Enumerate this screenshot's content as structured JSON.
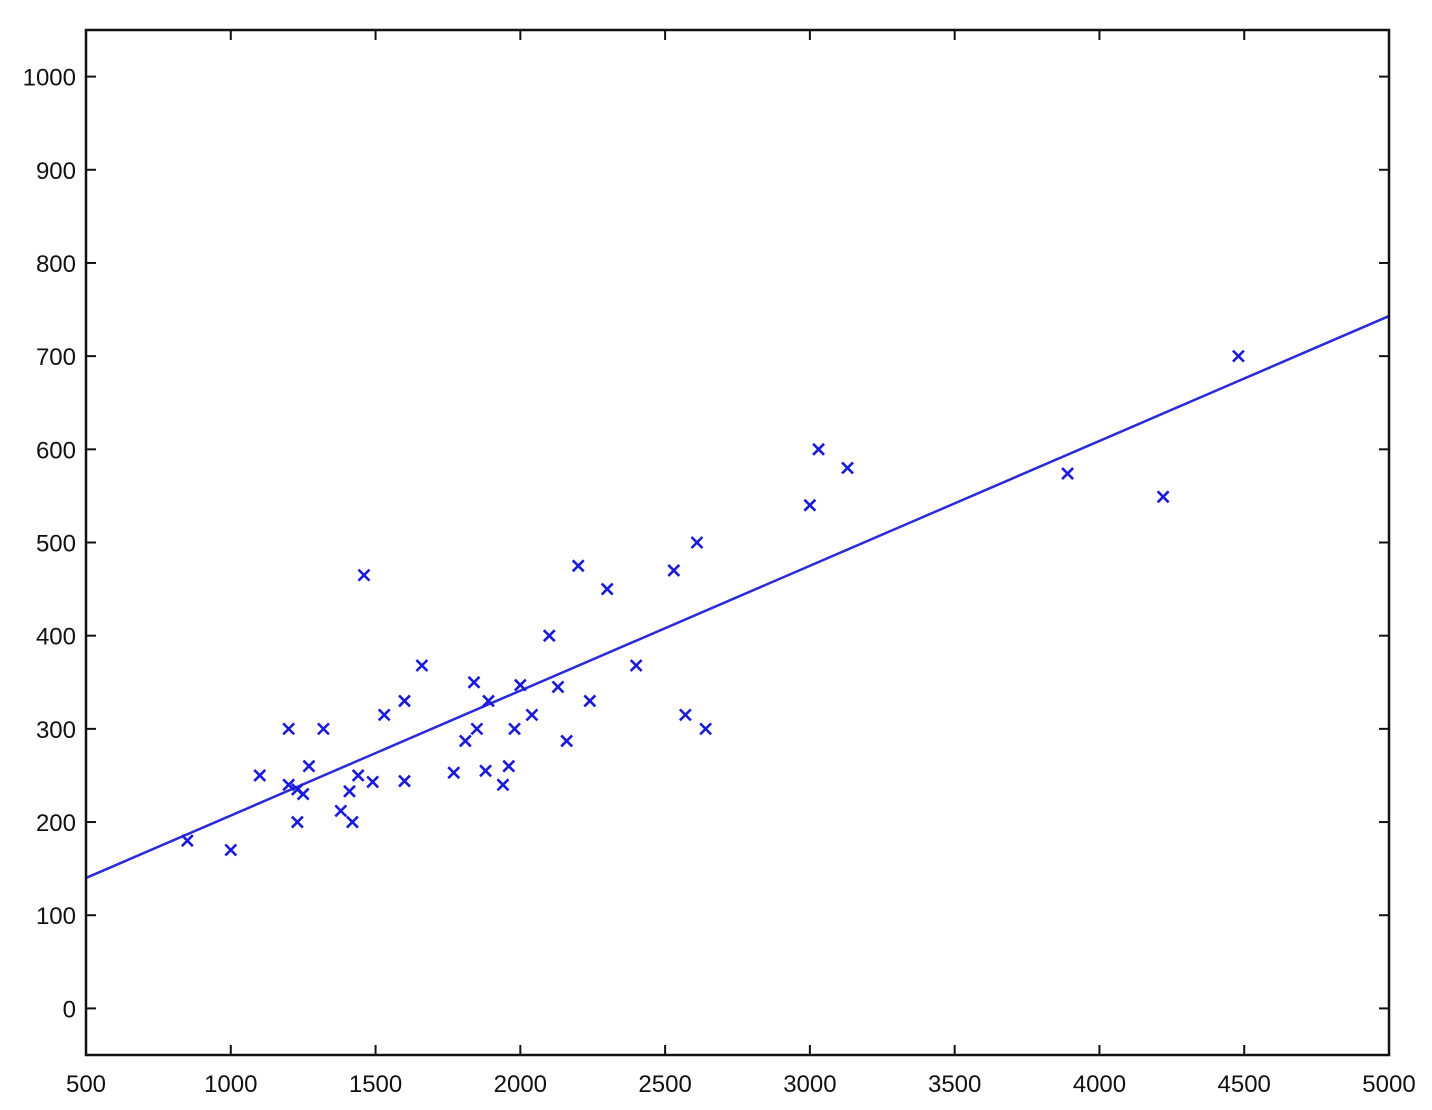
{
  "chart_data": {
    "type": "scatter",
    "title": "",
    "xlabel": "",
    "ylabel": "",
    "xlim": [
      500,
      5000
    ],
    "ylim": [
      -50,
      1050
    ],
    "x_ticks": [
      500,
      1000,
      1500,
      2000,
      2500,
      3000,
      3500,
      4000,
      4500,
      5000
    ],
    "y_ticks": [
      0,
      100,
      200,
      300,
      400,
      500,
      600,
      700,
      800,
      900,
      1000
    ],
    "grid": false,
    "marker": "x",
    "colors": {
      "points": "#1a1adb",
      "fit_line": "#2a2ad8",
      "axes": "#111111"
    },
    "series": [
      {
        "values": [
          [
            850,
            180
          ],
          [
            1000,
            170
          ],
          [
            1100,
            250
          ],
          [
            1200,
            300
          ],
          [
            1200,
            240
          ],
          [
            1230,
            200
          ],
          [
            1230,
            235
          ],
          [
            1250,
            230
          ],
          [
            1270,
            260
          ],
          [
            1320,
            300
          ],
          [
            1380,
            212
          ],
          [
            1410,
            233
          ],
          [
            1420,
            200
          ],
          [
            1440,
            250
          ],
          [
            1460,
            465
          ],
          [
            1490,
            243
          ],
          [
            1530,
            315
          ],
          [
            1600,
            330
          ],
          [
            1600,
            244
          ],
          [
            1660,
            368
          ],
          [
            1770,
            253
          ],
          [
            1810,
            287
          ],
          [
            1840,
            350
          ],
          [
            1850,
            300
          ],
          [
            1880,
            255
          ],
          [
            1890,
            330
          ],
          [
            1940,
            240
          ],
          [
            1960,
            260
          ],
          [
            1980,
            300
          ],
          [
            2000,
            347
          ],
          [
            2040,
            315
          ],
          [
            2100,
            400
          ],
          [
            2130,
            345
          ],
          [
            2160,
            287
          ],
          [
            2200,
            475
          ],
          [
            2240,
            330
          ],
          [
            2300,
            450
          ],
          [
            2400,
            368
          ],
          [
            2530,
            470
          ],
          [
            2570,
            315
          ],
          [
            2610,
            500
          ],
          [
            2640,
            300
          ],
          [
            3000,
            540
          ],
          [
            3030,
            600
          ],
          [
            3130,
            580
          ],
          [
            3890,
            574
          ],
          [
            4220,
            549
          ],
          [
            4480,
            700
          ]
        ]
      }
    ],
    "fit_line": {
      "x": [
        500,
        5000
      ],
      "y": [
        140,
        743
      ]
    }
  }
}
